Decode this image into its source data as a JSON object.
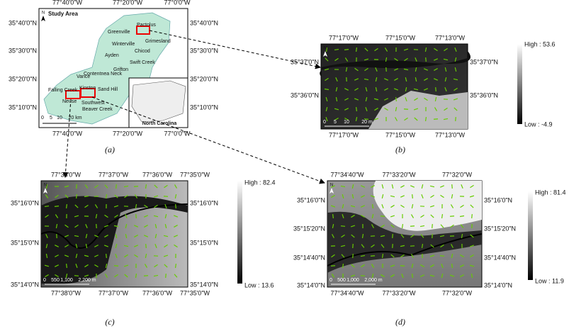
{
  "panels": [
    {
      "caption": "(a)",
      "north_label": "N",
      "title": "Study Area",
      "lon_ticks": [
        "77°40'0\"W",
        "77°20'0\"W",
        "77°0'0\"W"
      ],
      "lat_ticks": [
        "35°40'0\"N",
        "35°30'0\"N",
        "35°20'0\"N",
        "35°10'0\"N"
      ],
      "places": [
        "Pactolus",
        "Greenville",
        "Grimesland",
        "Winterville",
        "Ayden",
        "Chicod",
        "Swift Creek",
        "Grifton",
        "Vance",
        "Contentnea Neck",
        "Falling Creek",
        "Sand Hill",
        "Kinston",
        "Neuse",
        "Southwest",
        "Beaver Creek"
      ],
      "scale_labels": [
        "0",
        "5",
        "10",
        "20 km"
      ],
      "inset_label": "North Carolina"
    },
    {
      "caption": "(b)",
      "north_label": "N",
      "lon_ticks": [
        "77°17'0\"W",
        "77°15'0\"W",
        "77°13'0\"W"
      ],
      "lat_ticks": [
        "35°37'0\"N",
        "35°36'0\"N"
      ],
      "legend_high": "High : 53.6",
      "legend_low": "Low : -4.9",
      "scale_labels": [
        "0",
        "5",
        "10",
        "20 m"
      ]
    },
    {
      "caption": "(c)",
      "north_label": "N",
      "lon_ticks": [
        "77°38'0\"W",
        "77°37'0\"W",
        "77°36'0\"W",
        "77°35'0\"W"
      ],
      "lat_ticks": [
        "35°16'0\"N",
        "35°15'0\"N",
        "35°14'0\"N"
      ],
      "legend_high": "High : 82.4",
      "legend_low": "Low : 13.6",
      "scale_labels": [
        "0",
        "550",
        "1,100",
        "2,200 m"
      ]
    },
    {
      "caption": "(d)",
      "north_label": "N",
      "lon_ticks": [
        "77°34'40\"W",
        "77°33'20\"W",
        "77°32'0\"W"
      ],
      "lat_ticks": [
        "35°16'0\"N",
        "35°15'20\"N",
        "35°14'40\"N",
        "35°14'0\"N"
      ],
      "legend_high": "High : 81.4",
      "legend_low": "Low : 11.9",
      "scale_labels": [
        "0",
        "500",
        "1,000",
        "2,000 m"
      ]
    }
  ]
}
